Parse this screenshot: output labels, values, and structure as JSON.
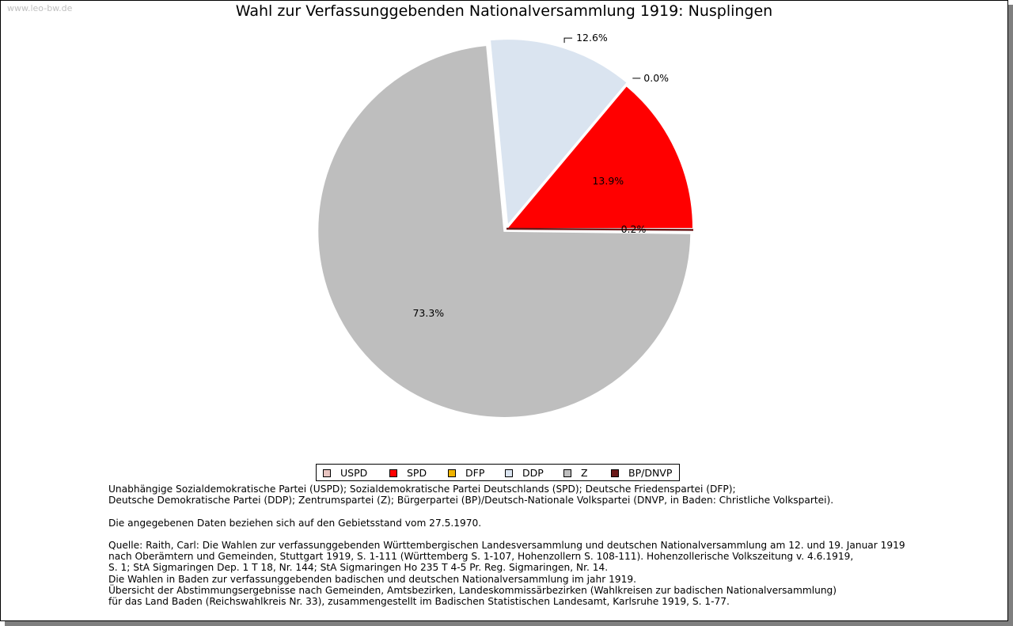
{
  "watermark": "www.leo-bw.de",
  "chart_data": {
    "type": "pie",
    "title": "Wahl zur Verfassunggebenden Nationalversammlung 1919: Nusplingen",
    "slices": [
      {
        "name": "USPD",
        "value": 0.0,
        "label": "",
        "color": "#e8c4c0"
      },
      {
        "name": "SPD",
        "value": 13.9,
        "label": "13.9%",
        "color": "#ff0000"
      },
      {
        "name": "DFP",
        "value": 0.0,
        "label": "0.0%",
        "color": "#f0b400"
      },
      {
        "name": "DDP",
        "value": 12.6,
        "label": "12.6%",
        "color": "#dae4f0"
      },
      {
        "name": "Z",
        "value": 73.3,
        "label": "73.3%",
        "color": "#bebebe"
      },
      {
        "name": "BP/DNVP",
        "value": 0.2,
        "label": "0.2%",
        "color": "#6b1a1a"
      }
    ],
    "legend_position": "bottom"
  },
  "legend": [
    {
      "label": "USPD",
      "color": "#e8c4c0"
    },
    {
      "label": "SPD",
      "color": "#ff0000"
    },
    {
      "label": "DFP",
      "color": "#f0b400"
    },
    {
      "label": "DDP",
      "color": "#dae4f0"
    },
    {
      "label": "Z",
      "color": "#bebebe"
    },
    {
      "label": "BP/DNVP",
      "color": "#6b1a1a"
    }
  ],
  "notes": {
    "line1": "Unabhängige Sozialdemokratische Partei (USPD); Sozialdemokratische Partei Deutschlands (SPD); Deutsche Friedenspartei (DFP);",
    "line2": "Deutsche Demokratische Partei (DDP); Zentrumspartei (Z); Bürgerpartei (BP)/Deutsch-Nationale Volkspartei (DNVP, in Baden: Christliche Volkspartei).",
    "line3": "Die angegebenen Daten beziehen sich auf den Gebietsstand vom 27.5.1970.",
    "line4": "Quelle: Raith, Carl: Die Wahlen zur verfassunggebenden Württembergischen Landesversammlung und deutschen Nationalversammlung am 12. und 19. Januar 1919",
    "line5": "nach Oberämtern und Gemeinden, Stuttgart 1919, S. 1-111 (Württemberg S. 1-107, Hohenzollern S. 108-111). Hohenzollerische Volkszeitung v. 4.6.1919,",
    "line6": "S. 1; StA Sigmaringen Dep. 1 T 18, Nr. 144; StA Sigmaringen Ho 235 T 4-5 Pr. Reg. Sigmaringen, Nr. 14.",
    "line7": "Die Wahlen in Baden zur verfassunggebenden badischen und deutschen Nationalversammlung im jahr 1919.",
    "line8": "Übersicht der Abstimmungsergebnisse nach Gemeinden, Amtsbezirken, Landeskommissärbezirken (Wahlkreisen zur badischen Nationalversammlung)",
    "line9": "für das Land Baden (Reichswahlkreis Nr. 33), zusammengestellt im Badischen Statistischen Landesamt, Karlsruhe 1919, S. 1-77."
  }
}
